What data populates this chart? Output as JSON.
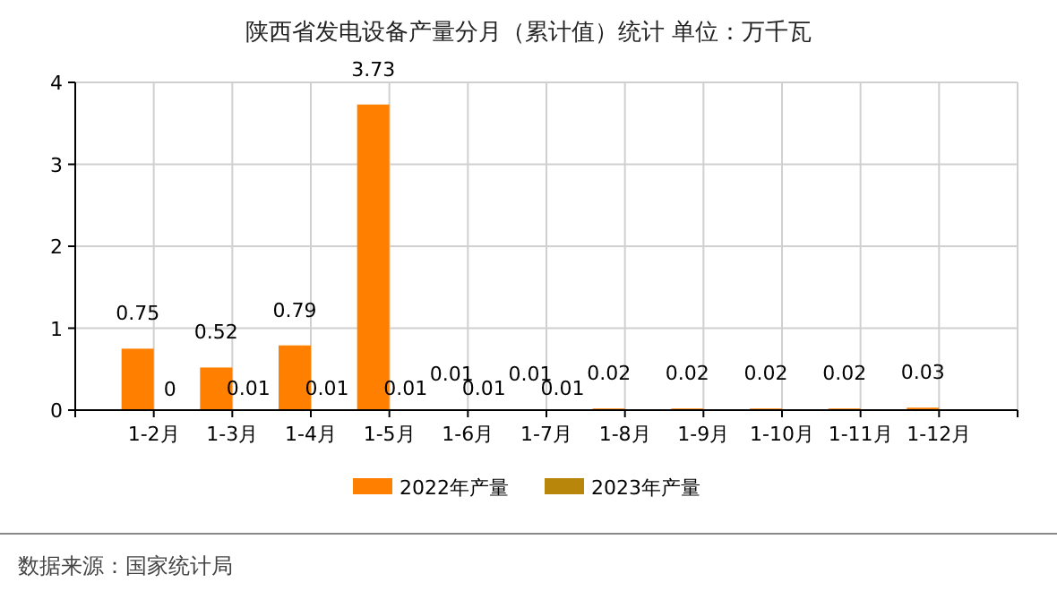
{
  "chart_data": {
    "type": "bar",
    "title": "陕西省发电设备产量分月（累计值）统计 单位：万千瓦",
    "categories": [
      "1-2月",
      "1-3月",
      "1-4月",
      "1-5月",
      "1-6月",
      "1-7月",
      "1-8月",
      "1-9月",
      "1-10月",
      "1-11月",
      "1-12月"
    ],
    "series": [
      {
        "name": "2022年产量",
        "color": "#ff8000",
        "values": [
          0.75,
          0.52,
          0.79,
          3.73,
          0.01,
          0.01,
          0.02,
          0.02,
          0.02,
          0.02,
          0.03
        ]
      },
      {
        "name": "2023年产量",
        "color": "#b8860b",
        "values": [
          0,
          0.01,
          0.01,
          0.01,
          0.01,
          0.01,
          null,
          null,
          null,
          null,
          null
        ]
      }
    ],
    "ylim": [
      0,
      4
    ],
    "yticks": [
      0,
      1,
      2,
      3,
      4
    ],
    "grid": true,
    "legend": "bottom",
    "data_labels": true,
    "annotations": [
      "数据来源：国家统计局"
    ]
  }
}
